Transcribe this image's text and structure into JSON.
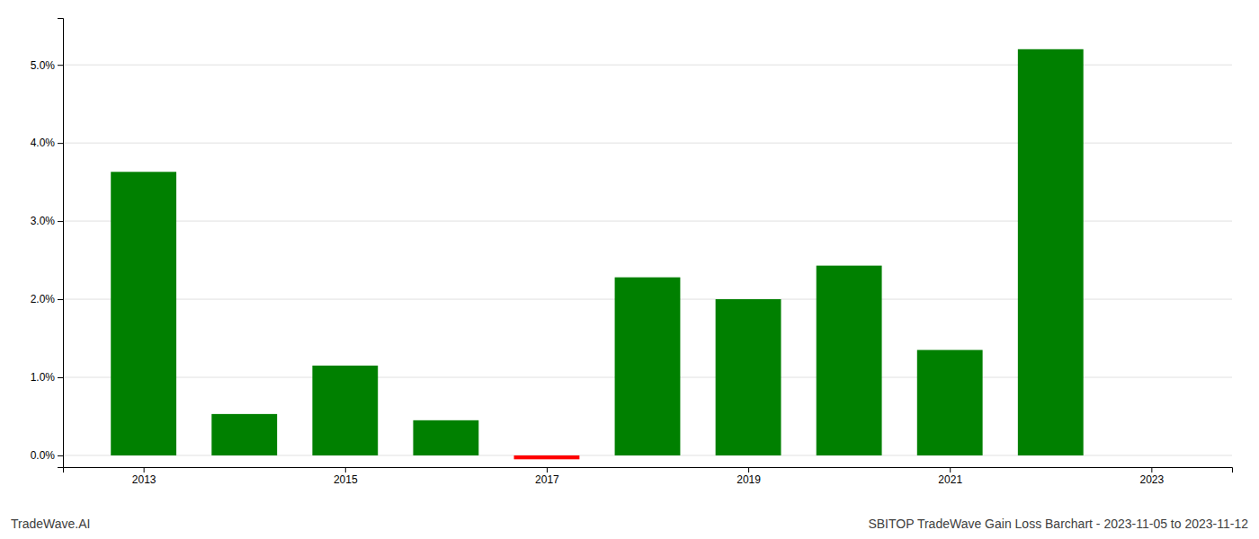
{
  "chart_data": {
    "type": "bar",
    "title": "SBITOP TradeWave Gain Loss Barchart - 2023-11-05 to 2023-11-12",
    "annotations": [
      "TradeWave.AI"
    ],
    "x": [
      2013,
      2014,
      2015,
      2016,
      2017,
      2018,
      2019,
      2020,
      2021,
      2022
    ],
    "values": [
      0.0363,
      0.0053,
      0.0115,
      0.0045,
      -0.0005,
      0.0228,
      0.02,
      0.0243,
      0.0135,
      0.052
    ],
    "colors": [
      "#008000",
      "#008000",
      "#008000",
      "#008000",
      "#ff0000",
      "#008000",
      "#008000",
      "#008000",
      "#008000",
      "#008000"
    ],
    "xlim": [
      2012.2,
      2023.8
    ],
    "xticks": [
      2013,
      2015,
      2017,
      2019,
      2021,
      2023
    ],
    "ylim": [
      -0.0015,
      0.056
    ],
    "yticks": [
      {
        "value": 0.0,
        "label": "0.0%"
      },
      {
        "value": 0.01,
        "label": "1.0%"
      },
      {
        "value": 0.02,
        "label": "2.0%"
      },
      {
        "value": 0.03,
        "label": "3.0%"
      },
      {
        "value": 0.04,
        "label": "4.0%"
      },
      {
        "value": 0.05,
        "label": "5.0%"
      }
    ],
    "grid": true
  }
}
